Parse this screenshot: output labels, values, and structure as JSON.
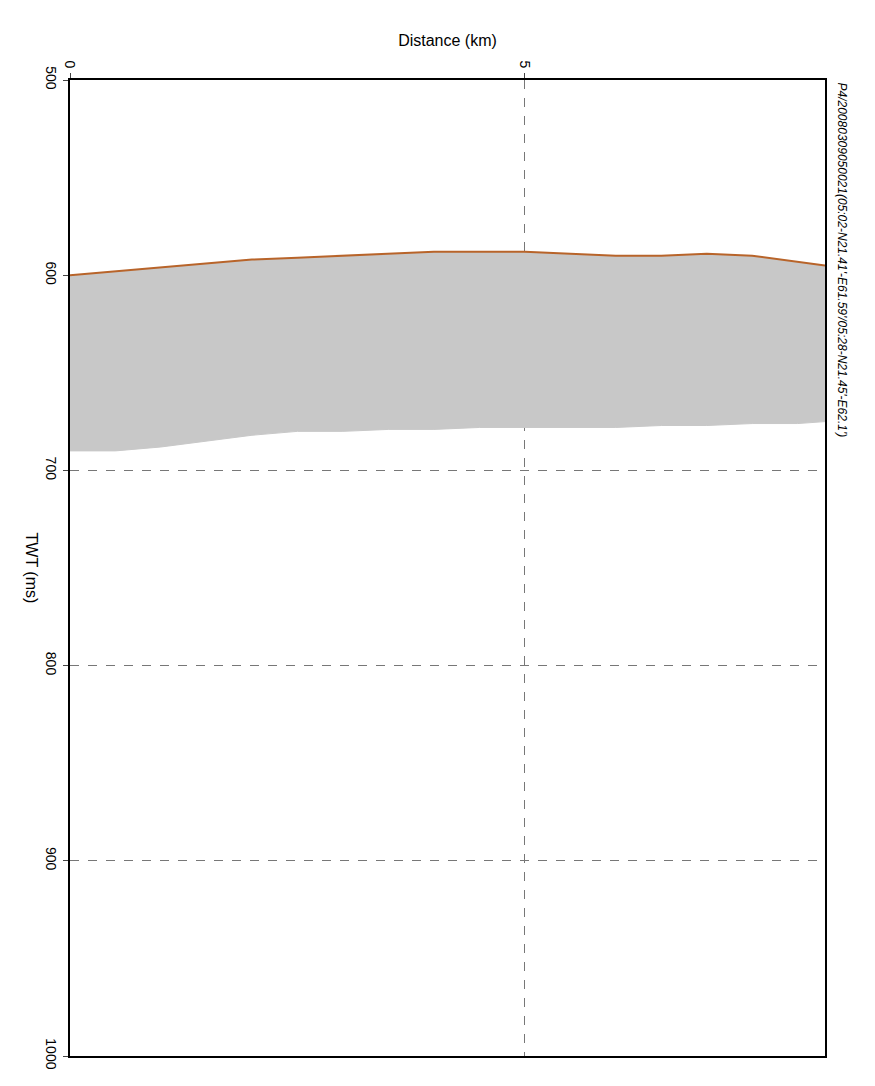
{
  "chart_data": {
    "type": "line",
    "title": "P4/20080309050021(05:02-N21.41'-E61.59'/05:28-N21.45'-E62.1')",
    "x_label": "Distance (km)",
    "y_label": "TWT (ms)",
    "x": [
      0,
      0.5,
      1,
      1.5,
      2,
      2.5,
      3,
      3.5,
      4,
      4.5,
      5,
      5.5,
      6,
      6.5,
      7,
      7.5,
      8,
      8.3
    ],
    "series": [
      {
        "color": "#b8642a",
        "values": [
          600,
          598,
          596,
          594,
          592,
          591,
          590,
          589,
          588,
          588,
          588,
          589,
          590,
          590,
          589,
          590,
          593,
          595
        ]
      },
      {
        "color": "#c8c8c8",
        "values": [
          690,
          690,
          688,
          685,
          682,
          680,
          680,
          679,
          679,
          678,
          678,
          678,
          678,
          677,
          677,
          676,
          676,
          675
        ]
      }
    ],
    "xlim": [
      0,
      8.3
    ],
    "xticks": [
      0,
      5
    ],
    "ylim": [
      1000,
      500
    ],
    "yticks": [
      500,
      600,
      700,
      800,
      900,
      1000
    ],
    "grid": true
  }
}
